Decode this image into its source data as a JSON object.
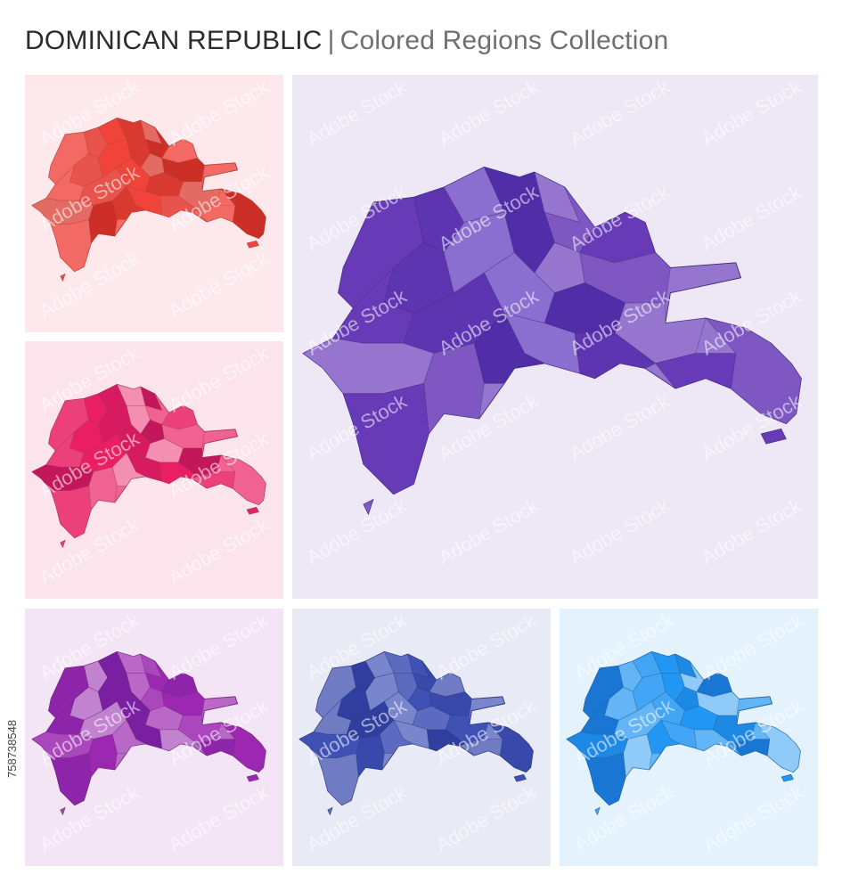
{
  "header": {
    "country": "DOMINICAN REPUBLIC",
    "separator": "|",
    "subtitle": "Colored Regions Collection"
  },
  "stock_id": "758738548",
  "watermark_text": "Adobe Stock",
  "panels": [
    {
      "name": "panel-red",
      "bg": "#fde9eb",
      "palette": [
        "#f26a63",
        "#e8534b",
        "#f0443a",
        "#d93a30",
        "#e36b63",
        "#cc2f26"
      ],
      "stroke": "#b0413a"
    },
    {
      "name": "panel-pink",
      "bg": "#fce4ec",
      "palette": [
        "#f06292",
        "#ec407a",
        "#e91e63",
        "#d81b60",
        "#f48fb1",
        "#c2185b"
      ],
      "stroke": "#a33457"
    },
    {
      "name": "panel-violet",
      "bg": "#ede7f6",
      "palette": [
        "#9575cd",
        "#7e57c2",
        "#673ab7",
        "#5e35b1",
        "#8b6fd0",
        "#512da8"
      ],
      "stroke": "#3d2a78"
    },
    {
      "name": "panel-purple",
      "bg": "#f3e5f5",
      "palette": [
        "#ba68c8",
        "#ab47bc",
        "#9c27b0",
        "#8e24aa",
        "#c182d0",
        "#7b1fa2"
      ],
      "stroke": "#6a2a78"
    },
    {
      "name": "panel-indigo",
      "bg": "#e8eaf6",
      "palette": [
        "#7986cb",
        "#5c6bc0",
        "#3f51b5",
        "#3949ab",
        "#6f7cc4",
        "#303f9f"
      ],
      "stroke": "#283478"
    },
    {
      "name": "panel-blue",
      "bg": "#e3f2fd",
      "palette": [
        "#64b5f6",
        "#42a5f5",
        "#2196f3",
        "#1e88e5",
        "#90caf9",
        "#1976d2"
      ],
      "stroke": "#1f5f98"
    }
  ]
}
